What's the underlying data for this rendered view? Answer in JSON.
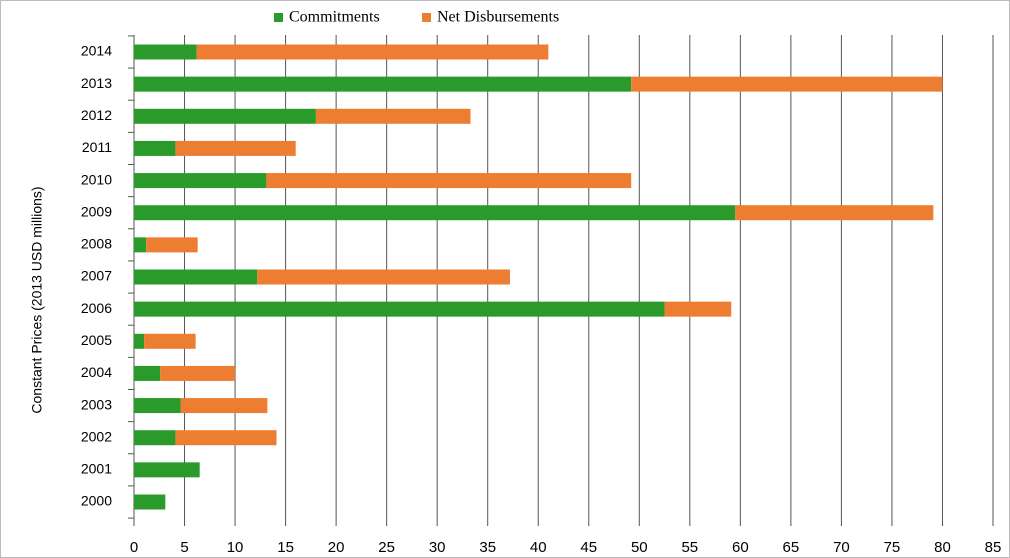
{
  "chart_data": {
    "type": "stacked-bar-horizontal",
    "y_axis_label": "Constant Prices (2013 USD millions)",
    "categories": [
      "2000",
      "2001",
      "2002",
      "2003",
      "2004",
      "2005",
      "2006",
      "2007",
      "2008",
      "2009",
      "2010",
      "2011",
      "2012",
      "2013",
      "2014"
    ],
    "series": [
      {
        "name": "Commitments",
        "color": "#2a9a2a",
        "values": [
          3.1,
          6.5,
          4.1,
          4.6,
          2.6,
          1.0,
          52.5,
          12.2,
          1.2,
          59.5,
          13.1,
          4.1,
          18.0,
          49.2,
          6.2
        ]
      },
      {
        "name": "Net Disbursements",
        "color": "#ed7d31",
        "values": [
          0,
          0,
          10.0,
          8.6,
          7.4,
          5.1,
          6.6,
          25.0,
          5.1,
          19.6,
          36.1,
          11.9,
          15.3,
          30.8,
          34.8
        ]
      }
    ],
    "xlim": [
      0,
      85
    ],
    "xticks": [
      0,
      5,
      10,
      15,
      20,
      25,
      30,
      35,
      40,
      45,
      50,
      55,
      60,
      65,
      70,
      75,
      80,
      85
    ],
    "grid": true
  }
}
